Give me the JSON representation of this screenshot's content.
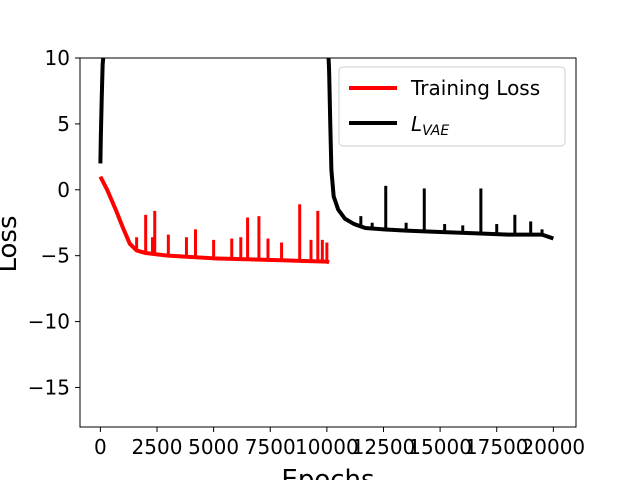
{
  "chart_data": {
    "type": "line",
    "xlabel": "Epochs",
    "ylabel": "Loss",
    "xlim": [
      -900,
      21000
    ],
    "ylim": [
      -18,
      10
    ],
    "x_ticks": [
      0,
      2500,
      5000,
      7500,
      10000,
      12500,
      15000,
      17500,
      20000
    ],
    "x_tick_labels": [
      "0",
      "2500",
      "5000",
      "7500",
      "10000",
      "12500",
      "15000",
      "17500",
      "20000"
    ],
    "y_ticks": [
      10,
      5,
      0,
      -5,
      -10,
      -15
    ],
    "y_tick_labels": [
      "10",
      "5",
      "0",
      "−5",
      "−10",
      "−15"
    ],
    "grid": false,
    "legend_position": "top-right",
    "series": [
      {
        "name": "Training Loss",
        "color": "#ff0000",
        "x": [
          0,
          300,
          700,
          1000,
          1300,
          1600,
          2000,
          2500,
          3000,
          4000,
          5000,
          6000,
          7000,
          8000,
          9000,
          10000,
          10100
        ],
        "y": [
          1.0,
          0.0,
          -1.6,
          -2.9,
          -4.1,
          -4.6,
          -4.8,
          -4.9,
          -5.0,
          -5.1,
          -5.2,
          -5.25,
          -5.3,
          -5.35,
          -5.4,
          -5.45,
          -5.5
        ],
        "spikes": [
          [
            1600,
            -3.6
          ],
          [
            2000,
            -1.9
          ],
          [
            2300,
            -3.6
          ],
          [
            2400,
            -1.6
          ],
          [
            3000,
            -3.4
          ],
          [
            3800,
            -3.6
          ],
          [
            4200,
            -3.0
          ],
          [
            5000,
            -3.8
          ],
          [
            5800,
            -3.7
          ],
          [
            6200,
            -3.6
          ],
          [
            6500,
            -2.1
          ],
          [
            7000,
            -2.0
          ],
          [
            7400,
            -3.7
          ],
          [
            8000,
            -4.0
          ],
          [
            8800,
            -1.1
          ],
          [
            9300,
            -3.8
          ],
          [
            9600,
            -1.6
          ],
          [
            9800,
            -3.8
          ],
          [
            10000,
            -4.0
          ]
        ]
      },
      {
        "name": "L_VAE",
        "color": "#000000",
        "x": [
          0,
          20,
          60,
          100,
          150,
          200,
          300,
          10050,
          10100,
          10150,
          10200,
          10300,
          10500,
          10800,
          11200,
          11700,
          12500,
          13500,
          15000,
          16500,
          18000,
          19500,
          20000
        ],
        "y": [
          2.0,
          4.0,
          7.0,
          9.5,
          10.5,
          11.0,
          11.0,
          11.0,
          9.0,
          5.0,
          1.5,
          -0.5,
          -1.5,
          -2.2,
          -2.6,
          -2.9,
          -3.0,
          -3.1,
          -3.2,
          -3.3,
          -3.4,
          -3.4,
          -3.7
        ],
        "spikes": [
          [
            11500,
            -2.0
          ],
          [
            12000,
            -2.5
          ],
          [
            12600,
            0.3
          ],
          [
            13500,
            -2.5
          ],
          [
            14300,
            0.1
          ],
          [
            15200,
            -2.6
          ],
          [
            16000,
            -2.7
          ],
          [
            16800,
            0.1
          ],
          [
            17500,
            -2.6
          ],
          [
            18300,
            -1.9
          ],
          [
            19000,
            -2.4
          ],
          [
            19500,
            -3.0
          ]
        ]
      }
    ],
    "legend_entries": [
      {
        "text": "Training Loss",
        "color": "#ff0000"
      },
      {
        "main": "L",
        "sub": "VAE",
        "color": "#000000"
      }
    ]
  }
}
